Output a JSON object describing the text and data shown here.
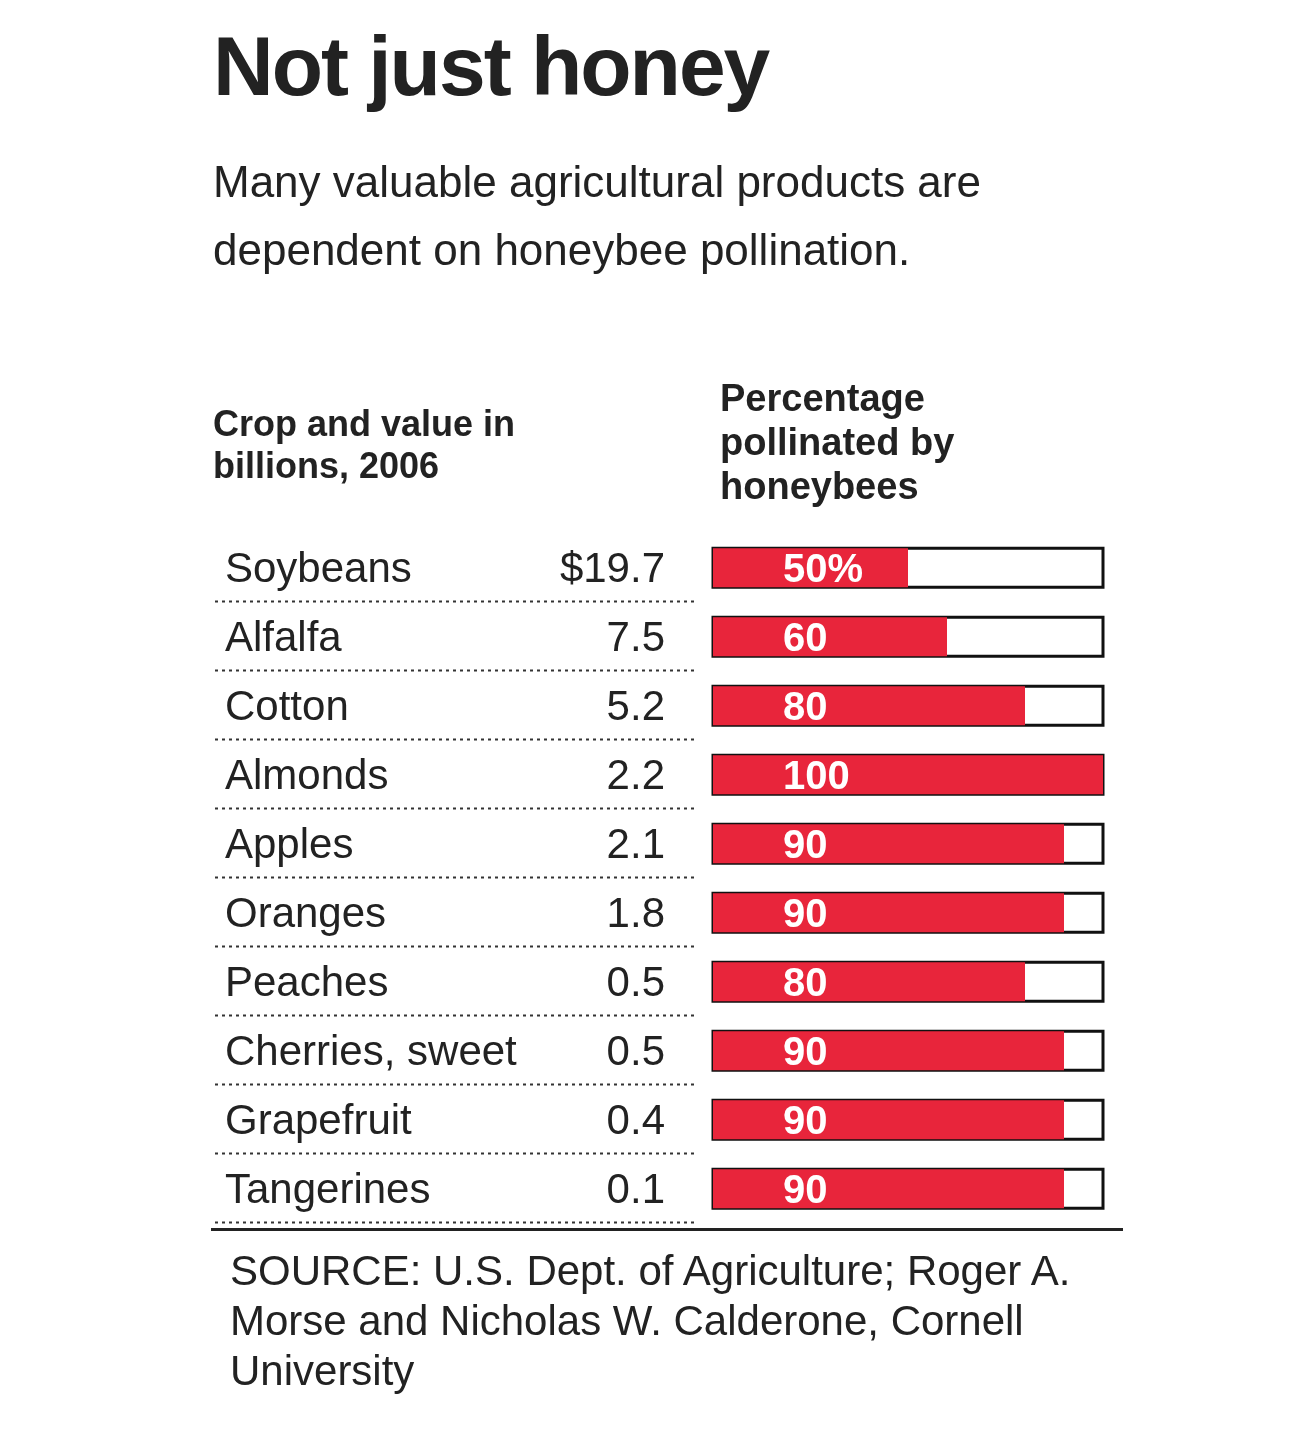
{
  "chart_data": {
    "type": "bar",
    "orientation": "horizontal",
    "title": "Not just honey",
    "subtitle": "Many valuable agricultural products are  dependent on honeybee pollination.",
    "ylabel": "Crop and value in billions, 2006",
    "xlabel": "Percentage pollinated by honeybees",
    "categories": [
      "Soybeans",
      "Alfalfa",
      "Cotton",
      "Almonds",
      "Apples",
      "Oranges",
      "Peaches",
      "Cherries, sweet",
      "Grapefruit",
      "Tangerines"
    ],
    "values": [
      50,
      60,
      80,
      100,
      90,
      90,
      80,
      90,
      90,
      90
    ],
    "value_labels": [
      "50%",
      "60",
      "80",
      "100",
      "90",
      "90",
      "80",
      "90",
      "90",
      "90"
    ],
    "color": "#e8253b",
    "xlim": [
      0,
      100
    ],
    "tick_labels": "y",
    "annotations": [
      "$19.7",
      "7.5",
      "5.2",
      "2.2",
      "2.1",
      "1.8",
      "0.5",
      "0.5",
      "0.4",
      "0.1",
      "SOURCE: U.S. Dept. of Agriculture; Roger A. Morse and Nicholas W. Calderone, Cornell University"
    ]
  }
}
